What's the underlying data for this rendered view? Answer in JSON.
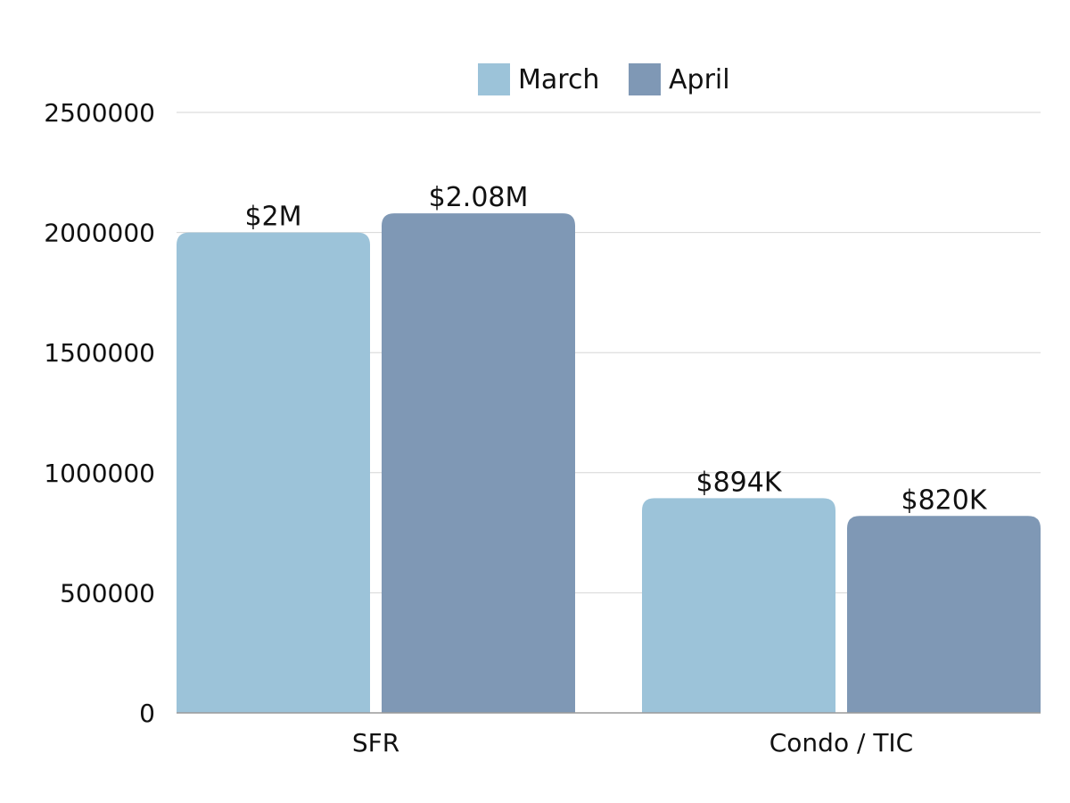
{
  "chart_data": {
    "type": "bar",
    "title": "",
    "xlabel": "",
    "ylabel": "",
    "categories": [
      "SFR",
      "Condo / TIC"
    ],
    "series": [
      {
        "name": "March",
        "color": "#9CC3D9",
        "values": [
          2000000,
          894000
        ],
        "labels": [
          "$2M",
          "$894K"
        ]
      },
      {
        "name": "April",
        "color": "#7F98B5",
        "values": [
          2080000,
          820000
        ],
        "labels": [
          "$2.08M",
          "$820K"
        ]
      }
    ],
    "ylim": [
      0,
      2500000
    ],
    "yticks": [
      0,
      500000,
      1000000,
      1500000,
      2000000,
      2500000
    ],
    "ytick_labels": [
      "0",
      "500000",
      "1000000",
      "1500000",
      "2000000",
      "2500000"
    ],
    "grid": true,
    "legend_position": "top-center"
  }
}
